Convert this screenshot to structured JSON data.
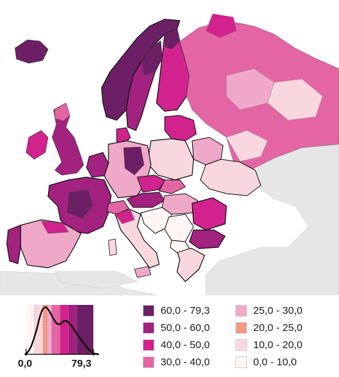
{
  "legend": {
    "items": [
      {
        "label": "60,0 - 79,3",
        "color": "#6d1f65"
      },
      {
        "label": "50,0 - 60,0",
        "color": "#a3217f"
      },
      {
        "label": "40,0 - 50,0",
        "color": "#d1228e"
      },
      {
        "label": "30,0 - 40,0",
        "color": "#e365a4"
      },
      {
        "label": "25,0 - 30,0",
        "color": "#f0a8c8"
      },
      {
        "label": "20,0 - 25,0",
        "color": "#ee9a86"
      },
      {
        "label": "10,0 - 20,0",
        "color": "#f9d7de"
      },
      {
        "label": "0,0 - 10,0",
        "color": "#fff5f5"
      }
    ]
  },
  "histogram": {
    "min_label": "0,0",
    "max_label": "79,3",
    "breaks": [
      10,
      20,
      25,
      30,
      40,
      50,
      60,
      79.3
    ]
  },
  "colors": {
    "water": "#ffffff",
    "non_eu_land": "#e6e6e6",
    "border": "#111111"
  }
}
